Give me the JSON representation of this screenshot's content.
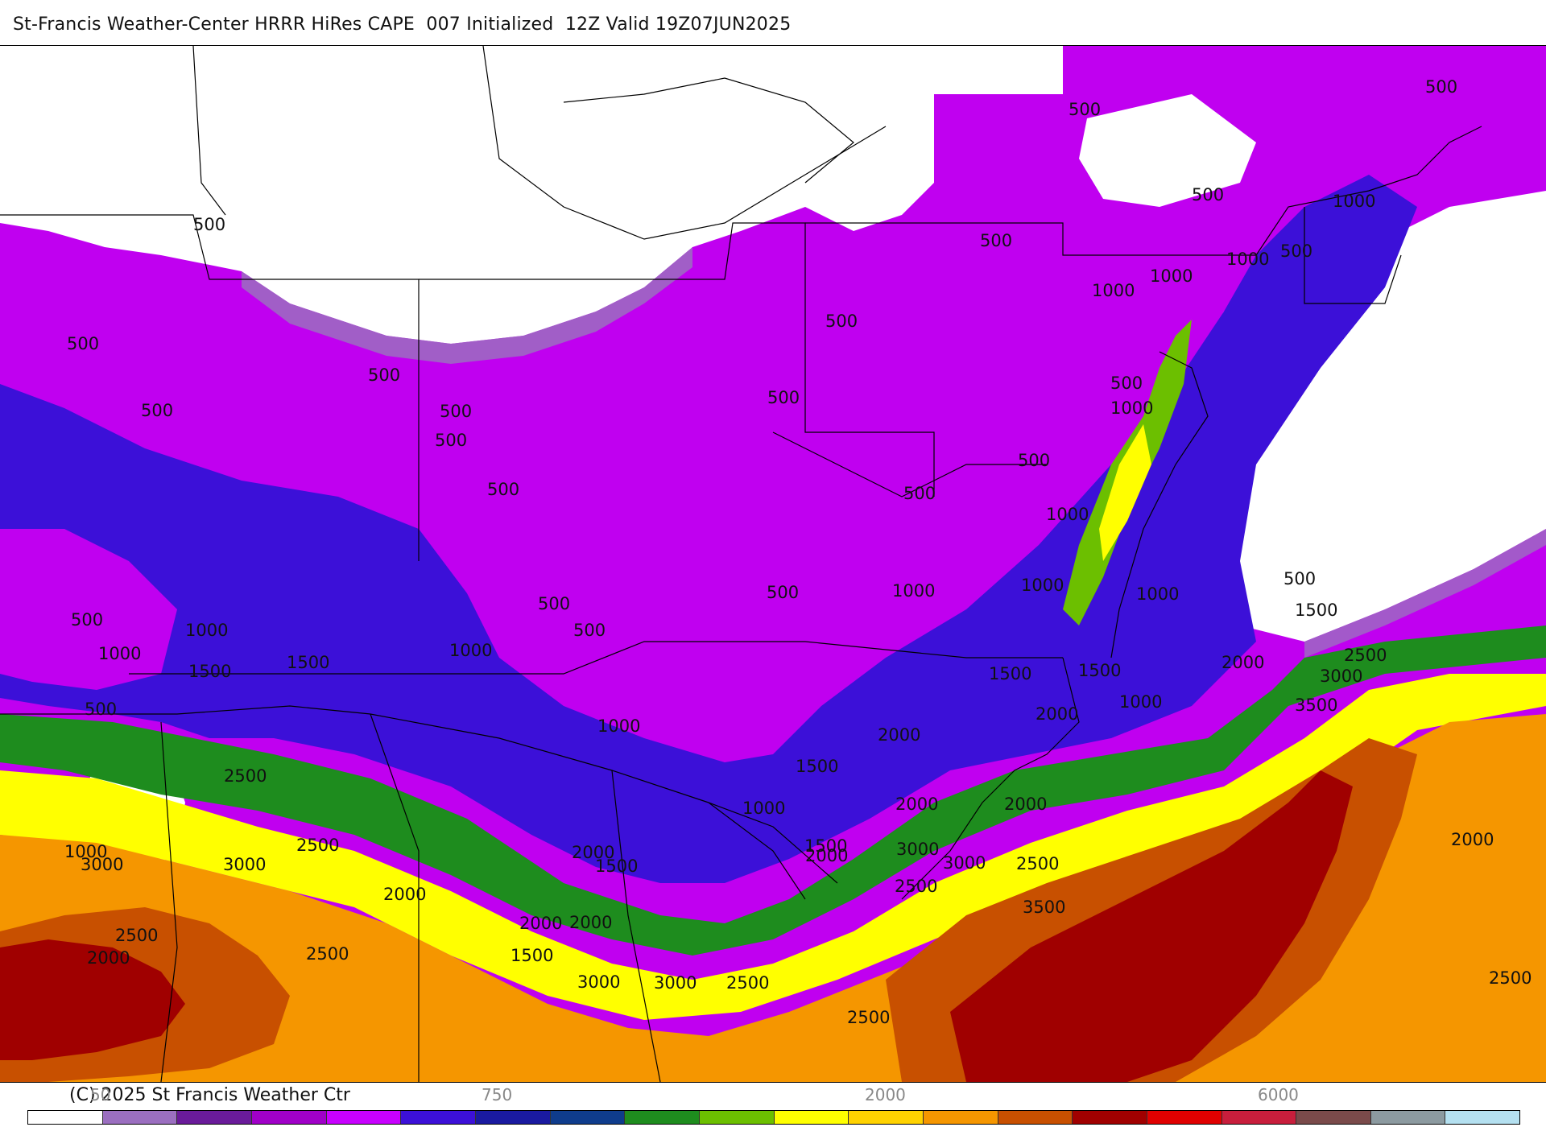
{
  "title": "St-Francis Weather-Center HRRR HiRes CAPE  007 Initialized  12Z Valid 19Z07JUN2025",
  "copyright": "(C) 2025 St Francis Weather Ctr",
  "map": {
    "field": "CAPE",
    "model": "HRRR HiRes",
    "color_scale": [
      "#ffffff",
      "#9b6fc0",
      "#6a1b9a",
      "#a000c8",
      "#c800ff",
      "#3c10d8",
      "#1a1aa0",
      "#0f3c8c",
      "#1e8c1e",
      "#6cbf00",
      "#ffff00",
      "#ffd200",
      "#f59600",
      "#c85000",
      "#a00000",
      "#e00000",
      "#c81e3c",
      "#7a4a4a",
      "#8c9aa0",
      "#b4e0f0"
    ],
    "colorbar_labels": {
      "left_partial": "50",
      "l750": "750",
      "l2000": "2000",
      "right_partial": "6000"
    },
    "contour_labels": [
      "500",
      "500",
      "500",
      "500",
      "500",
      "500",
      "500",
      "500",
      "500",
      "500",
      "500",
      "500",
      "500",
      "500",
      "500",
      "500",
      "500",
      "500",
      "500",
      "500",
      "500",
      "500",
      "500",
      "1000",
      "1000",
      "1000",
      "1000",
      "1000",
      "1000",
      "1000",
      "1000",
      "1000",
      "1000",
      "1000",
      "1000",
      "1000",
      "1000",
      "1000",
      "1000",
      "1500",
      "1500",
      "1500",
      "1500",
      "1500",
      "1500",
      "1500",
      "1500",
      "1500",
      "2000",
      "2000",
      "2000",
      "2000",
      "2000",
      "2000",
      "2000",
      "2000",
      "2000",
      "2000",
      "2000",
      "2000",
      "2500",
      "2500",
      "2500",
      "2500",
      "2500",
      "2500",
      "2500",
      "2500",
      "2500",
      "2500",
      "3000",
      "3000",
      "3000",
      "3000",
      "3000",
      "3000",
      "3000",
      "3500",
      "3500"
    ]
  }
}
